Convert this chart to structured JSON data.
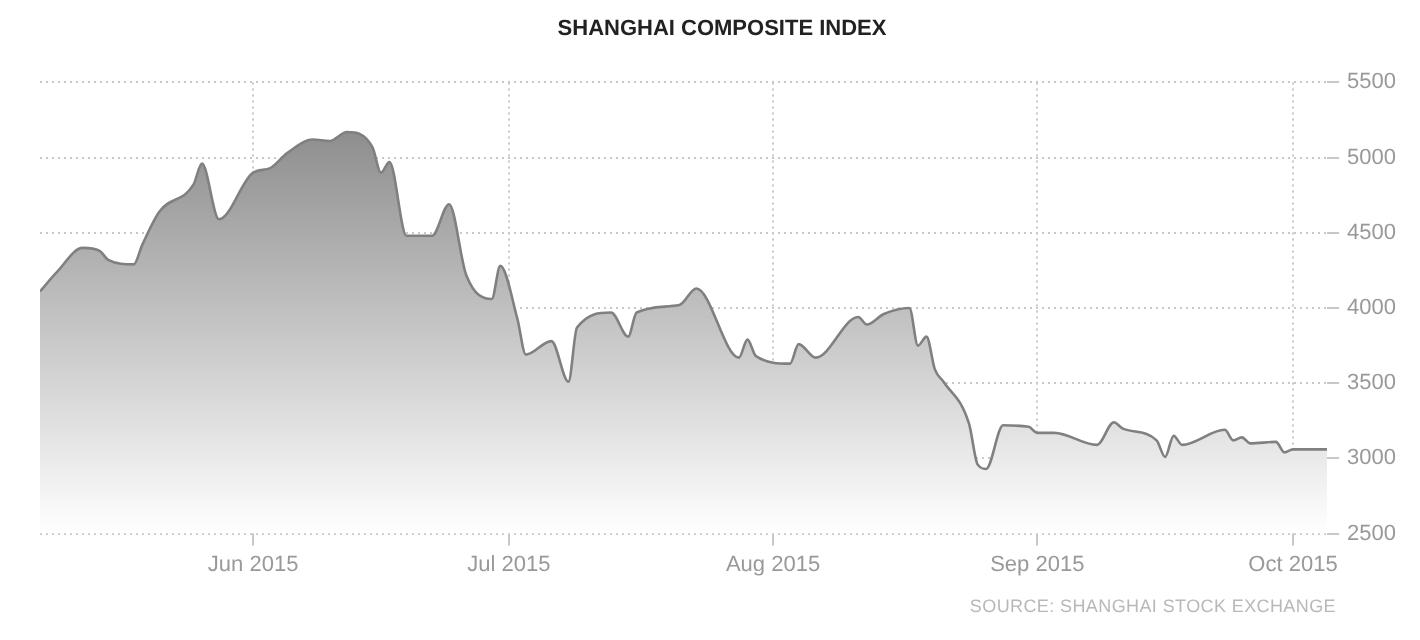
{
  "chart_data": {
    "type": "area",
    "title": "SHANGHAI COMPOSITE INDEX",
    "annotations": [
      "SOURCE: SHANGHAI STOCK EXCHANGE"
    ],
    "x": [
      "2015-05-07",
      "2015-05-09",
      "2015-05-12",
      "2015-05-14",
      "2015-05-15",
      "2015-05-18",
      "2015-05-19",
      "2015-05-21",
      "2015-05-25",
      "2015-05-26",
      "2015-05-28",
      "2015-06-01",
      "2015-06-03",
      "2015-06-05",
      "2015-06-08",
      "2015-06-10",
      "2015-06-12",
      "2015-06-15",
      "2015-06-16",
      "2015-06-17",
      "2015-06-19",
      "2015-06-22",
      "2015-06-24",
      "2015-06-26",
      "2015-06-29",
      "2015-06-30",
      "2015-07-02",
      "2015-07-03",
      "2015-07-06",
      "2015-07-08",
      "2015-07-09",
      "2015-07-13",
      "2015-07-15",
      "2015-07-16",
      "2015-07-21",
      "2015-07-23",
      "2015-07-28",
      "2015-07-29",
      "2015-07-30",
      "2015-08-03",
      "2015-08-04",
      "2015-08-06",
      "2015-08-11",
      "2015-08-12",
      "2015-08-14",
      "2015-08-17",
      "2015-08-18",
      "2015-08-19",
      "2015-08-20",
      "2015-08-21",
      "2015-08-24",
      "2015-08-25",
      "2015-08-26",
      "2015-08-28",
      "2015-08-31",
      "2015-09-01",
      "2015-09-03",
      "2015-09-08",
      "2015-09-10",
      "2015-09-11",
      "2015-09-15",
      "2015-09-16",
      "2015-09-17",
      "2015-09-18",
      "2015-09-23",
      "2015-09-24",
      "2015-09-25",
      "2015-09-26",
      "2015-09-29",
      "2015-09-30",
      "2015-10-01",
      "2015-10-05"
    ],
    "series": [
      {
        "color": "#808080",
        "values": [
          4110,
          4240,
          4400,
          4380,
          4320,
          4290,
          4420,
          4640,
          4820,
          4960,
          4590,
          4900,
          4930,
          5030,
          5120,
          5110,
          5170,
          5070,
          4900,
          4970,
          4480,
          4480,
          4690,
          4220,
          4060,
          4280,
          3930,
          3690,
          3780,
          3510,
          3870,
          3970,
          3810,
          3970,
          4020,
          4130,
          3670,
          3790,
          3680,
          3630,
          3760,
          3670,
          3940,
          3890,
          3960,
          4000,
          3750,
          3810,
          3590,
          3510,
          3230,
          2960,
          2930,
          3220,
          3210,
          3170,
          3170,
          3090,
          3240,
          3200,
          3120,
          3010,
          3150,
          3090,
          3190,
          3120,
          3140,
          3100,
          3110,
          3040,
          3060,
          3060
        ]
      }
    ],
    "xlim": [
      "2015-05-07",
      "2015-10-05"
    ],
    "xticks": [
      {
        "value": "2015-06-01",
        "label": "Jun 2015"
      },
      {
        "value": "2015-07-01",
        "label": "Jul 2015"
      },
      {
        "value": "2015-08-01",
        "label": "Aug 2015"
      },
      {
        "value": "2015-09-01",
        "label": "Sep 2015"
      },
      {
        "value": "2015-10-01",
        "label": "Oct 2015"
      }
    ],
    "ylim": [
      2500,
      5500
    ],
    "yticks": [
      2500,
      3000,
      3500,
      4000,
      4500,
      5000,
      5500
    ],
    "grid": true,
    "legend": false,
    "marker": "none",
    "line_style": "solid"
  }
}
